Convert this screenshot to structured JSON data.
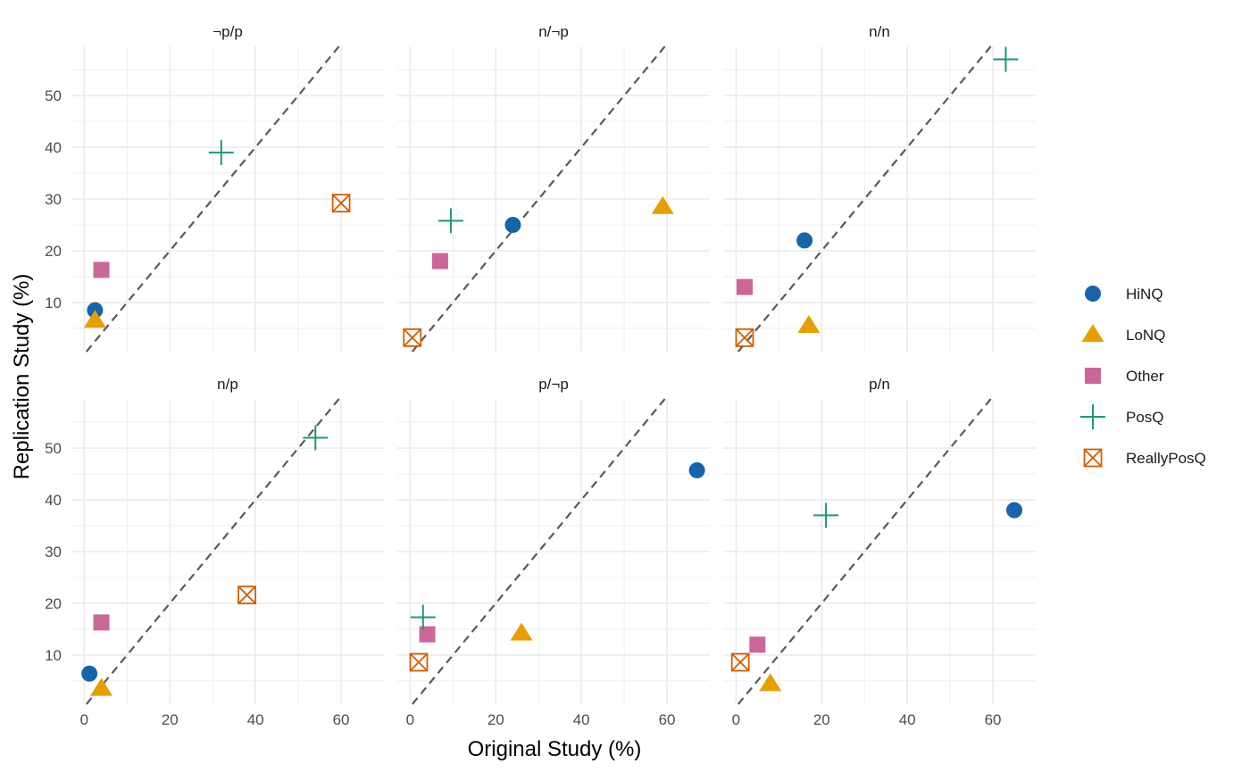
{
  "chart_data": {
    "type": "scatter",
    "xlabel": "Original Study (%)",
    "ylabel": "Replication Study (%)",
    "xlim": [
      -3,
      70
    ],
    "ylim": [
      0.5,
      59.5
    ],
    "x_ticks": [
      0,
      20,
      40,
      60
    ],
    "y_ticks": [
      10,
      20,
      30,
      40,
      50
    ],
    "x_tick_labels": [
      "0",
      "20",
      "40",
      "60"
    ],
    "y_tick_labels": [
      "10",
      "20",
      "30",
      "40",
      "50"
    ],
    "reference_line": "y = x",
    "grid": true,
    "legend_position": "right",
    "series": [
      {
        "name": "HiNQ",
        "shape": "circle",
        "color": "#1764ab"
      },
      {
        "name": "LoNQ",
        "shape": "triangle",
        "color": "#e69f00"
      },
      {
        "name": "Other",
        "shape": "square",
        "color": "#cc6699"
      },
      {
        "name": "PosQ",
        "shape": "plus",
        "color": "#1a9a6e"
      },
      {
        "name": "ReallyPosQ",
        "shape": "boxed-x",
        "color": "#d55e00"
      }
    ],
    "panels": [
      {
        "title": "¬p/p",
        "points": [
          {
            "series": "HiNQ",
            "x": 2.5,
            "y": 8.5
          },
          {
            "series": "LoNQ",
            "x": 2.5,
            "y": 6.5
          },
          {
            "series": "Other",
            "x": 4,
            "y": 16.3
          },
          {
            "series": "PosQ",
            "x": 32,
            "y": 39
          },
          {
            "series": "ReallyPosQ",
            "x": 60,
            "y": 29.2
          }
        ]
      },
      {
        "title": "n/¬p",
        "points": [
          {
            "series": "HiNQ",
            "x": 24,
            "y": 25
          },
          {
            "series": "LoNQ",
            "x": 59,
            "y": 28.5
          },
          {
            "series": "Other",
            "x": 7,
            "y": 18
          },
          {
            "series": "PosQ",
            "x": 9.5,
            "y": 25.8
          },
          {
            "series": "ReallyPosQ",
            "x": 0.5,
            "y": 3.2
          }
        ]
      },
      {
        "title": "n/n",
        "points": [
          {
            "series": "HiNQ",
            "x": 16,
            "y": 22
          },
          {
            "series": "LoNQ",
            "x": 17,
            "y": 5.5
          },
          {
            "series": "Other",
            "x": 2,
            "y": 13
          },
          {
            "series": "PosQ",
            "x": 63,
            "y": 57
          },
          {
            "series": "ReallyPosQ",
            "x": 2,
            "y": 3.2
          }
        ]
      },
      {
        "title": "n/p",
        "points": [
          {
            "series": "HiNQ",
            "x": 1.2,
            "y": 6.4
          },
          {
            "series": "LoNQ",
            "x": 4,
            "y": 3.5
          },
          {
            "series": "Other",
            "x": 4,
            "y": 16.3
          },
          {
            "series": "PosQ",
            "x": 54,
            "y": 52
          },
          {
            "series": "ReallyPosQ",
            "x": 38,
            "y": 21.6
          }
        ]
      },
      {
        "title": "p/¬p",
        "points": [
          {
            "series": "HiNQ",
            "x": 67,
            "y": 45.7
          },
          {
            "series": "LoNQ",
            "x": 26,
            "y": 14.2
          },
          {
            "series": "Other",
            "x": 4,
            "y": 14
          },
          {
            "series": "PosQ",
            "x": 3,
            "y": 17.3
          },
          {
            "series": "ReallyPosQ",
            "x": 2,
            "y": 8.6
          }
        ]
      },
      {
        "title": "p/n",
        "points": [
          {
            "series": "HiNQ",
            "x": 65,
            "y": 38
          },
          {
            "series": "LoNQ",
            "x": 8,
            "y": 4.4
          },
          {
            "series": "Other",
            "x": 5,
            "y": 12
          },
          {
            "series": "PosQ",
            "x": 21,
            "y": 37
          },
          {
            "series": "ReallyPosQ",
            "x": 1,
            "y": 8.6
          }
        ]
      }
    ]
  }
}
